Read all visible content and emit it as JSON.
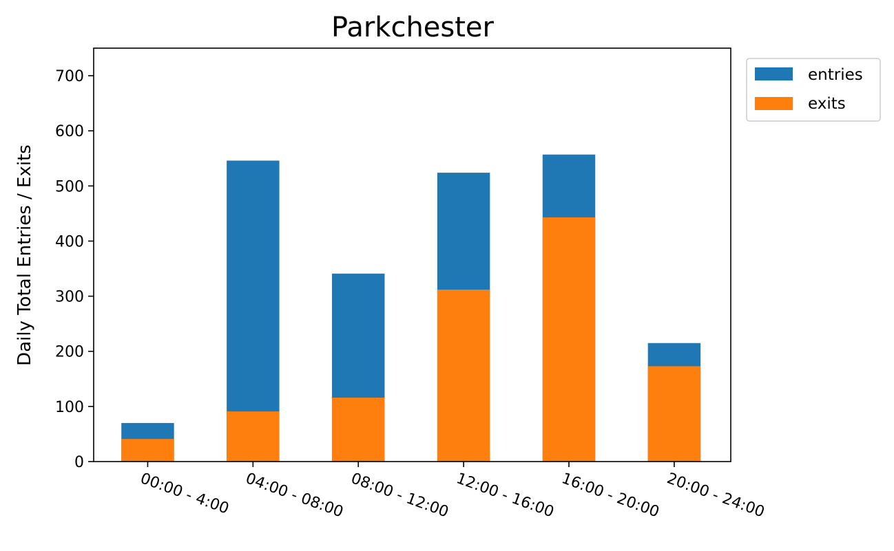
{
  "chart_data": {
    "type": "bar",
    "stacked": false,
    "title": "Parkchester",
    "xlabel": "",
    "ylabel": "Daily Total Entries / Exits",
    "categories": [
      "00:00 - 4:00",
      "04:00 - 08:00",
      "08:00 - 12:00",
      "12:00 - 16:00",
      "16:00 - 20:00",
      "20:00 - 24:00"
    ],
    "series": [
      {
        "name": "entries",
        "color": "#1f77b4",
        "values": [
          70,
          546,
          341,
          524,
          557,
          215
        ]
      },
      {
        "name": "exits",
        "color": "#ff7f0e",
        "values": [
          41,
          91,
          116,
          312,
          443,
          173
        ]
      }
    ],
    "ylim": [
      0,
      750
    ],
    "yticks": [
      0,
      100,
      200,
      300,
      400,
      500,
      600,
      700
    ],
    "grid": false,
    "legend": {
      "position": "outside-top-right"
    }
  }
}
